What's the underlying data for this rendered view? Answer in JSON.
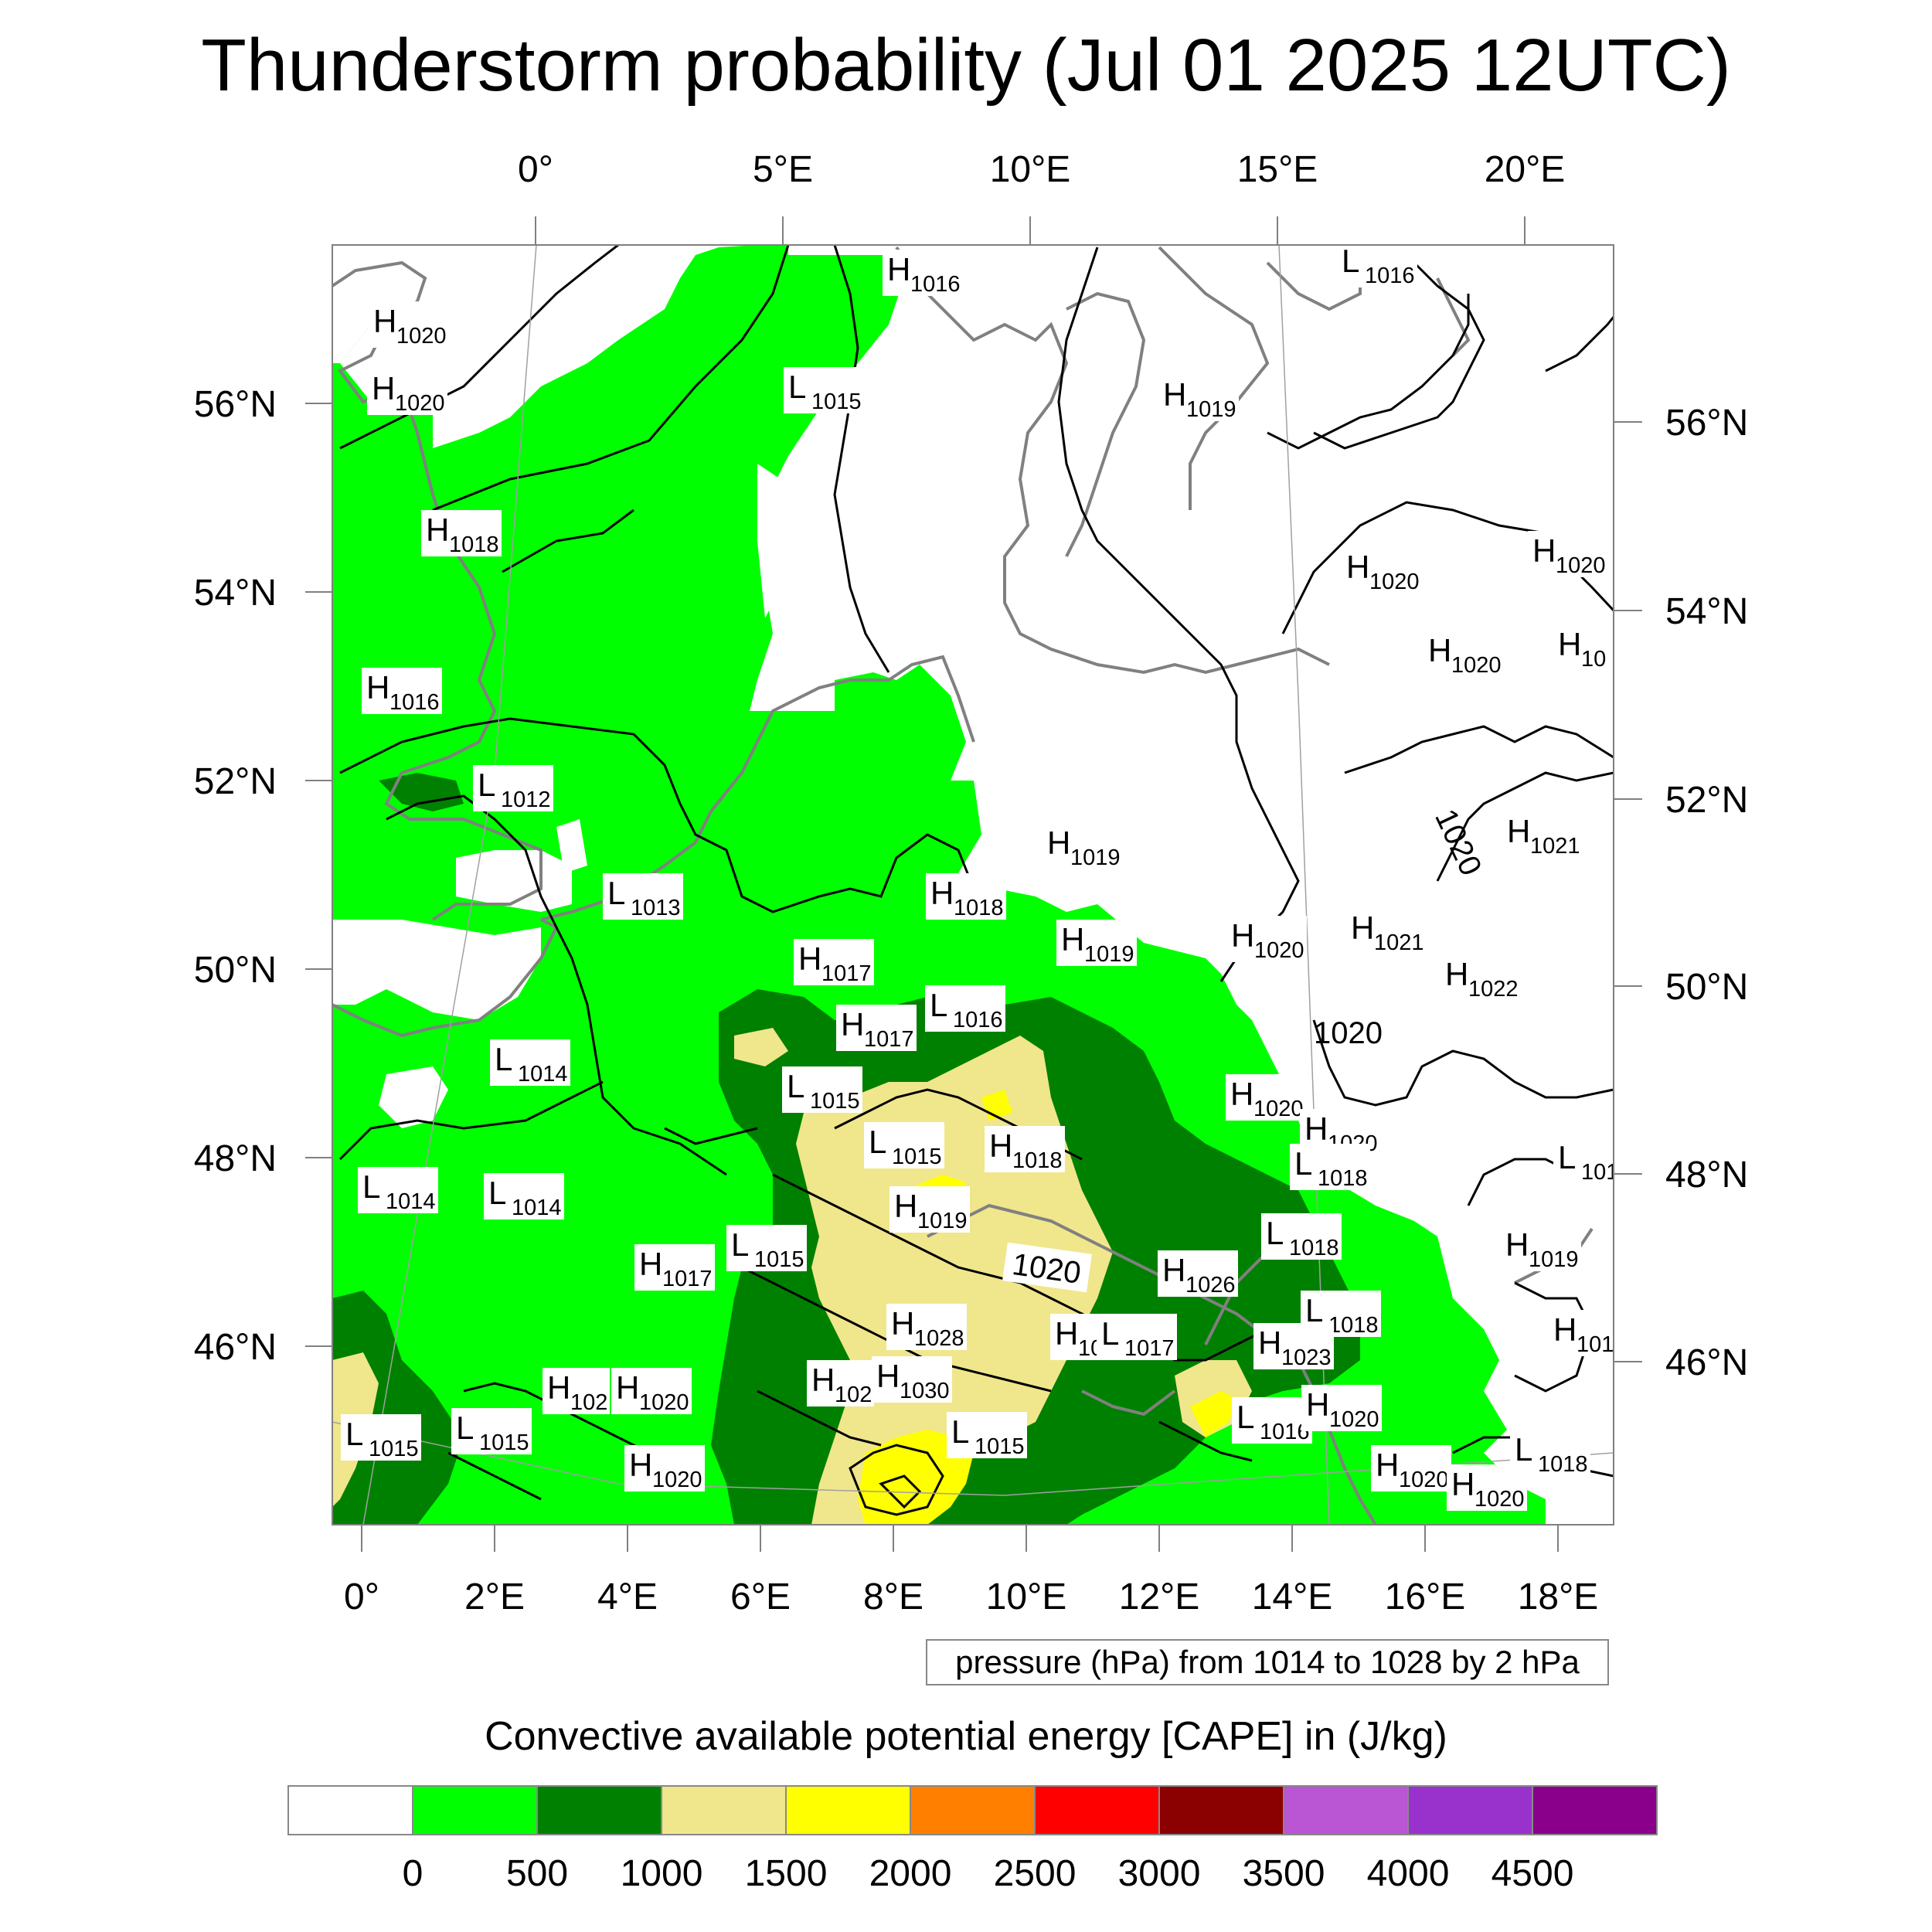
{
  "title": "Thunderstorm probability (Jul 01 2025 12UTC)",
  "top_lon_ticks": [
    "0°",
    "5°E",
    "10°E",
    "15°E",
    "20°E"
  ],
  "bottom_lon_ticks": [
    "0°",
    "2°E",
    "4°E",
    "6°E",
    "8°E",
    "10°E",
    "12°E",
    "14°E",
    "16°E",
    "18°E"
  ],
  "left_lat_ticks": [
    "56°N",
    "54°N",
    "52°N",
    "50°N",
    "48°N",
    "46°N"
  ],
  "right_lat_ticks": [
    "56°N",
    "54°N",
    "52°N",
    "50°N",
    "48°N",
    "46°N"
  ],
  "pressure_note": "pressure (hPa) from 1014 to 1028 by 2 hPa",
  "colorbar": {
    "title": "Convective available potential energy [CAPE] in (J/kg)",
    "labels": [
      "0",
      "500",
      "1000",
      "1500",
      "2000",
      "2500",
      "3000",
      "3500",
      "4000",
      "4500"
    ],
    "colors": [
      "#ffffff",
      "#00ff00",
      "#008000",
      "#f0e68c",
      "#ffff00",
      "#ff8000",
      "#ff0000",
      "#8b0000",
      "#ba55d3",
      "#9932cc",
      "#8b008b"
    ]
  },
  "colors": {
    "cape_0_500": "#00ff00",
    "cape_500_1000": "#008000",
    "cape_1000_1500": "#f0e68c",
    "cape_1500_2000": "#ffff00",
    "coastline": "#808080",
    "isobar": "#000000"
  },
  "contour_labels": [
    "1020",
    "1020",
    "1020"
  ],
  "pressure_labels": [
    {
      "letter": "H",
      "value": "1016"
    },
    {
      "letter": "L",
      "value": "1016"
    },
    {
      "letter": "H",
      "value": "1020"
    },
    {
      "letter": "H",
      "value": "1020"
    },
    {
      "letter": "L",
      "value": "1015"
    },
    {
      "letter": "H",
      "value": "1019"
    },
    {
      "letter": "H",
      "value": "1018"
    },
    {
      "letter": "H",
      "value": "1020"
    },
    {
      "letter": "H",
      "value": "1020"
    },
    {
      "letter": "H",
      "value": "1020"
    },
    {
      "letter": "H",
      "value": "10"
    },
    {
      "letter": "H",
      "value": "1016"
    },
    {
      "letter": "L",
      "value": "1012"
    },
    {
      "letter": "H",
      "value": "1019"
    },
    {
      "letter": "H",
      "value": "1021"
    },
    {
      "letter": "L",
      "value": "1013"
    },
    {
      "letter": "H",
      "value": "1018"
    },
    {
      "letter": "H",
      "value": "1021"
    },
    {
      "letter": "H",
      "value": "1019"
    },
    {
      "letter": "H",
      "value": "1020"
    },
    {
      "letter": "H",
      "value": "1017"
    },
    {
      "letter": "H",
      "value": "1022"
    },
    {
      "letter": "L",
      "value": "1016"
    },
    {
      "letter": "H",
      "value": "1017"
    },
    {
      "letter": "L",
      "value": "1014"
    },
    {
      "letter": "L",
      "value": "1015"
    },
    {
      "letter": "H",
      "value": "1020"
    },
    {
      "letter": "H",
      "value": "1020"
    },
    {
      "letter": "L",
      "value": "1015"
    },
    {
      "letter": "H",
      "value": "1018"
    },
    {
      "letter": "L",
      "value": "1018"
    },
    {
      "letter": "L",
      "value": "101"
    },
    {
      "letter": "L",
      "value": "1014"
    },
    {
      "letter": "L",
      "value": "1014"
    },
    {
      "letter": "H",
      "value": "1019"
    },
    {
      "letter": "L",
      "value": "1015"
    },
    {
      "letter": "L",
      "value": "1018"
    },
    {
      "letter": "H",
      "value": "1019"
    },
    {
      "letter": "H",
      "value": "1017"
    },
    {
      "letter": "H",
      "value": "1026"
    },
    {
      "letter": "L",
      "value": "1018"
    },
    {
      "letter": "H",
      "value": "1028"
    },
    {
      "letter": "H",
      "value": "10"
    },
    {
      "letter": "L",
      "value": "1017"
    },
    {
      "letter": "H",
      "value": "1023"
    },
    {
      "letter": "H",
      "value": "101"
    },
    {
      "letter": "H",
      "value": "102"
    },
    {
      "letter": "H",
      "value": "1020"
    },
    {
      "letter": "H",
      "value": "102"
    },
    {
      "letter": "H",
      "value": "1030"
    },
    {
      "letter": "L",
      "value": "1015"
    },
    {
      "letter": "L",
      "value": "1015"
    },
    {
      "letter": "L",
      "value": "1015"
    },
    {
      "letter": "L",
      "value": "1016"
    },
    {
      "letter": "H",
      "value": "1020"
    },
    {
      "letter": "H",
      "value": "1020"
    },
    {
      "letter": "H",
      "value": "1020"
    },
    {
      "letter": "H",
      "value": "1020"
    },
    {
      "letter": "L",
      "value": "1018"
    }
  ]
}
